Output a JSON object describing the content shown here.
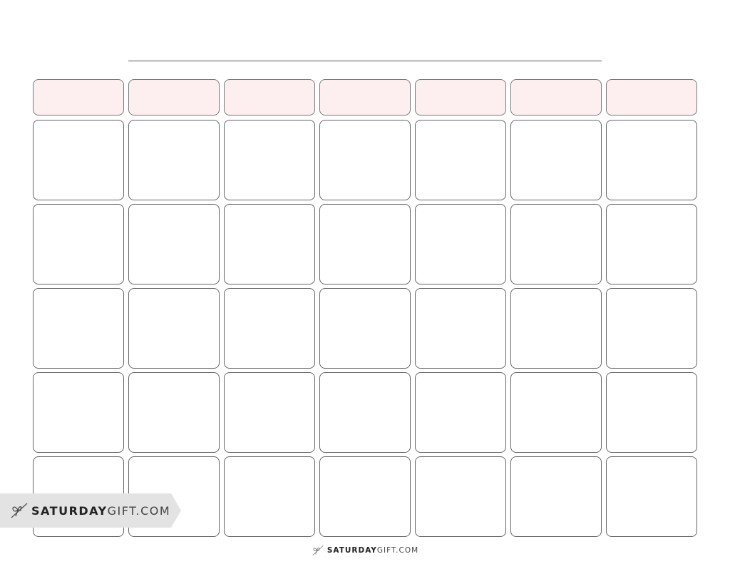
{
  "calendar": {
    "columns": 7,
    "week_rows": 5,
    "header_color": "#fdeef0",
    "border_color": "#666666"
  },
  "badge": {
    "brand_bold": "SATURDAY",
    "brand_light": "GIFT.COM",
    "icon": "gift-bow-icon"
  },
  "footer": {
    "brand_bold": "SATURDAY",
    "brand_light": "GIFT.COM",
    "icon": "gift-bow-icon"
  }
}
